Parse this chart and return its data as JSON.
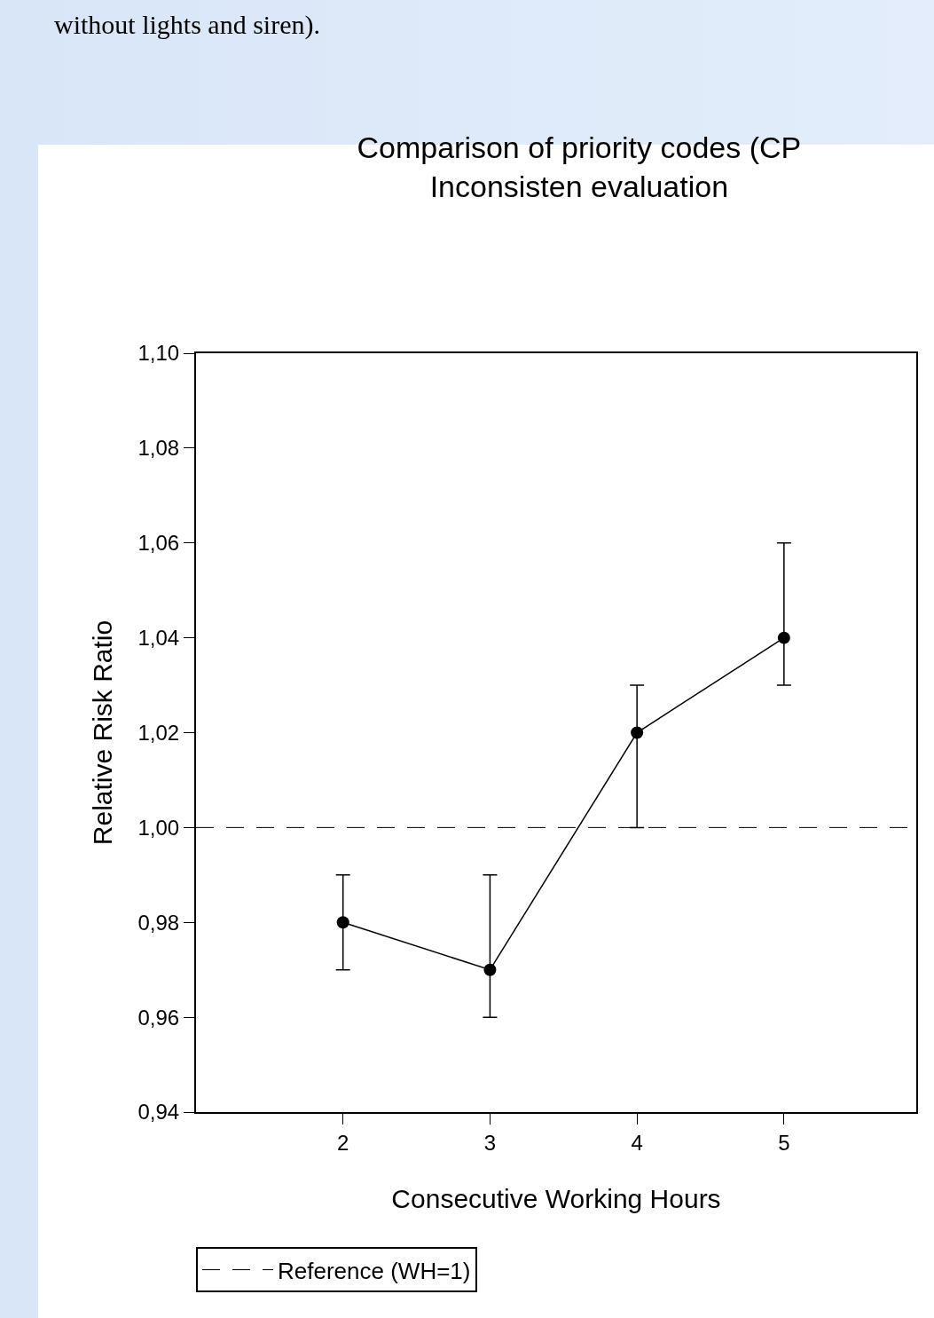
{
  "chart_data": {
    "type": "line",
    "title": "Comparison of priority codes (CP\nInconsisten evaluation",
    "xlabel": "Consecutive Working Hours",
    "ylabel": "Relative Risk Ratio",
    "annotations": [
      "without lights and siren)."
    ],
    "x": [
      2,
      3,
      4,
      5
    ],
    "series": [
      {
        "color": "#000000",
        "values": [
          0.98,
          0.97,
          1.02,
          1.04
        ],
        "errors": [
          [
            0.97,
            0.99
          ],
          [
            0.96,
            0.99
          ],
          [
            1.0,
            1.03
          ],
          [
            1.03,
            1.06
          ]
        ]
      }
    ],
    "xlim": [
      1,
      5.9
    ],
    "xticks": [
      2,
      3,
      4,
      5
    ],
    "ylim": [
      0.94,
      1.1
    ],
    "yticks": [
      {
        "value": 0.94,
        "label": "0,94"
      },
      {
        "value": 0.96,
        "label": "0,96"
      },
      {
        "value": 0.98,
        "label": "0,98"
      },
      {
        "value": 1.0,
        "label": "1,00"
      },
      {
        "value": 1.02,
        "label": "1,02"
      },
      {
        "value": 1.04,
        "label": "1,04"
      },
      {
        "value": 1.06,
        "label": "1,06"
      },
      {
        "value": 1.08,
        "label": "1,08"
      },
      {
        "value": 1.1,
        "label": "1,10"
      }
    ],
    "ref_lines": [
      {
        "axis": "y",
        "value": 1.0,
        "label": "Reference (WH=1)",
        "color": "#000000",
        "line_style": "dashed"
      }
    ],
    "marker": "circle",
    "line_style": "solid",
    "grid": false,
    "legend": "bottom left"
  }
}
